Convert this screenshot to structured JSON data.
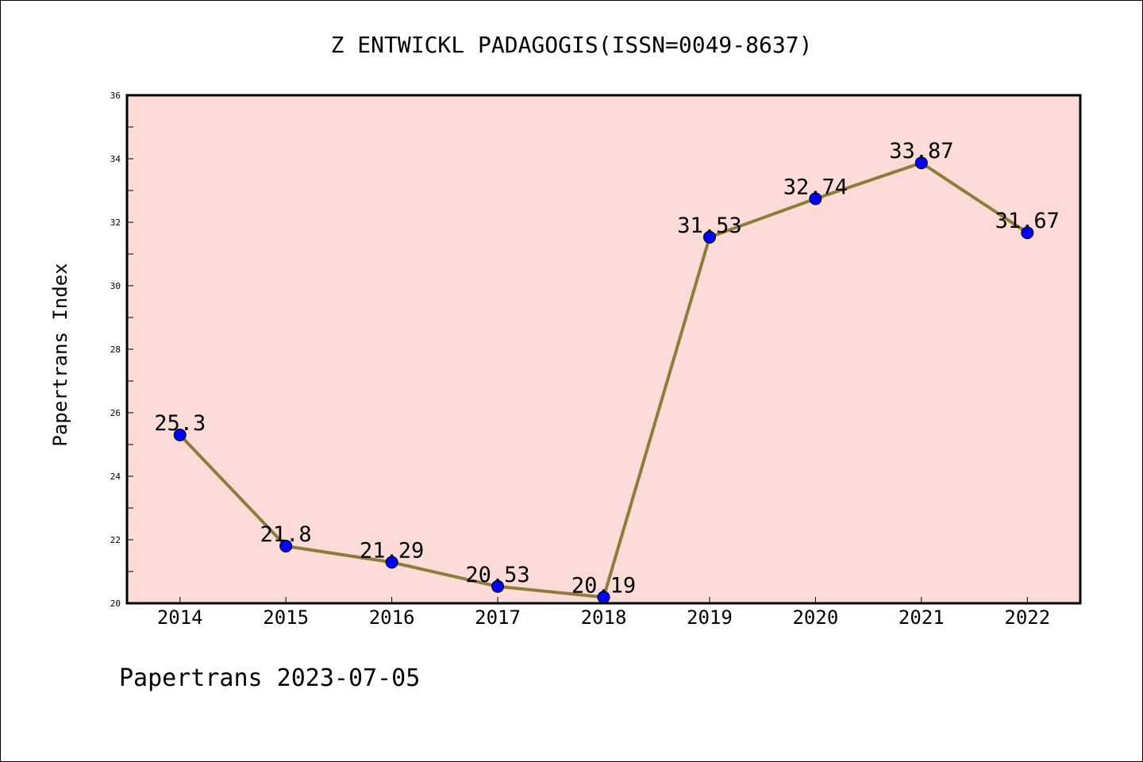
{
  "chart_data": {
    "type": "line",
    "title": "Z ENTWICKL PADAGOGIS(ISSN=0049-8637)",
    "xlabel": "",
    "ylabel": "Papertrans Index",
    "categories": [
      "2014",
      "2015",
      "2016",
      "2017",
      "2018",
      "2019",
      "2020",
      "2021",
      "2022"
    ],
    "values": [
      25.3,
      21.8,
      21.29,
      20.53,
      20.19,
      31.53,
      32.74,
      33.87,
      31.67
    ],
    "value_labels": [
      "25.3",
      "21.8",
      "21.29",
      "20.53",
      "20.19",
      "31.53",
      "32.74",
      "33.87",
      "31.67"
    ],
    "ylim": [
      20,
      36
    ],
    "yticks": [
      "20",
      "22",
      "24",
      "26",
      "28",
      "30",
      "32",
      "34",
      "36"
    ],
    "grid": false,
    "colors": {
      "plot_background": "#fddbd8",
      "line": "#8b7d3a",
      "marker": "#0000ff"
    }
  },
  "footer": {
    "text": "Papertrans 2023-07-05"
  }
}
